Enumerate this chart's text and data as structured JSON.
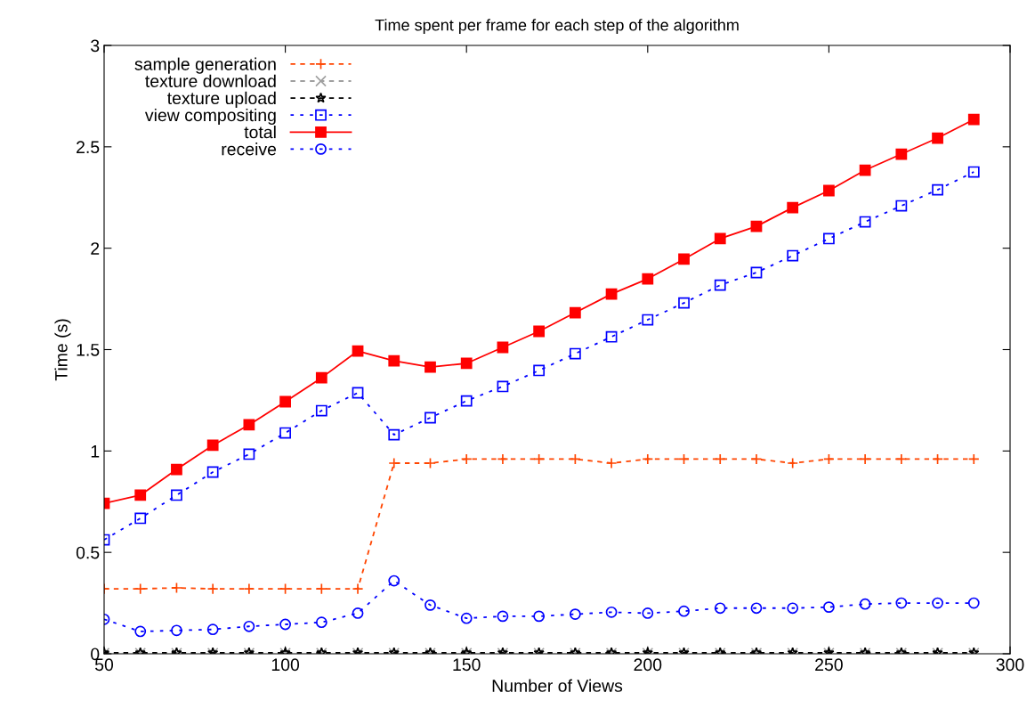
{
  "chart_data": {
    "type": "line",
    "title": "Time spent per frame for each step of the algorithm",
    "xlabel": "Number of Views",
    "ylabel": "Time (s)",
    "x": [
      50,
      60,
      70,
      80,
      90,
      100,
      110,
      120,
      130,
      140,
      150,
      160,
      170,
      180,
      190,
      200,
      210,
      220,
      230,
      240,
      250,
      260,
      270,
      280,
      290
    ],
    "xlim": [
      50,
      300
    ],
    "xticks": [
      50,
      100,
      150,
      200,
      250,
      300
    ],
    "ylim": [
      0,
      3
    ],
    "yticks": [
      0,
      0.5,
      1,
      1.5,
      2,
      2.5,
      3
    ],
    "grid": false,
    "legend": "top left",
    "series": [
      {
        "name": "sample generation",
        "color": "#ff4500",
        "marker": "cross",
        "line_style": "dashed",
        "values": [
          0.32,
          0.32,
          0.325,
          0.32,
          0.32,
          0.32,
          0.32,
          0.32,
          0.94,
          0.94,
          0.96,
          0.96,
          0.96,
          0.96,
          0.94,
          0.96,
          0.96,
          0.96,
          0.96,
          0.94,
          0.96,
          0.96,
          0.96,
          0.96,
          0.96
        ]
      },
      {
        "name": "texture download",
        "color": "#a0a0a0",
        "marker": "cross",
        "line_style": "dashed",
        "values": [
          0.003,
          0.003,
          0.003,
          0.003,
          0.003,
          0.003,
          0.003,
          0.003,
          0.003,
          0.003,
          0.003,
          0.003,
          0.003,
          0.003,
          0.003,
          0.003,
          0.003,
          0.003,
          0.003,
          0.003,
          0.003,
          0.003,
          0.003,
          0.003,
          0.003
        ]
      },
      {
        "name": "texture upload",
        "color": "#000000",
        "marker": "star",
        "line_style": "dashed",
        "values": [
          0.005,
          0.005,
          0.005,
          0.005,
          0.005,
          0.005,
          0.005,
          0.005,
          0.005,
          0.005,
          0.005,
          0.005,
          0.005,
          0.005,
          0.005,
          0.005,
          0.005,
          0.005,
          0.005,
          0.005,
          0.005,
          0.005,
          0.005,
          0.005,
          0.005
        ]
      },
      {
        "name": "view compositing",
        "color": "#0000ff",
        "marker": "square",
        "line_style": "dotted",
        "values": [
          0.562,
          0.668,
          0.782,
          0.896,
          0.984,
          1.089,
          1.199,
          1.287,
          1.08,
          1.164,
          1.247,
          1.318,
          1.397,
          1.48,
          1.563,
          1.647,
          1.73,
          1.818,
          1.88,
          1.963,
          2.047,
          2.13,
          2.209,
          2.288,
          2.376
        ]
      },
      {
        "name": "total",
        "color": "#ff0000",
        "marker": "square",
        "line_style": "solid",
        "values": [
          0.742,
          0.782,
          0.909,
          1.028,
          1.129,
          1.243,
          1.361,
          1.493,
          1.445,
          1.414,
          1.432,
          1.511,
          1.59,
          1.682,
          1.774,
          1.849,
          1.946,
          2.047,
          2.108,
          2.2,
          2.284,
          2.385,
          2.464,
          2.543,
          2.635
        ]
      },
      {
        "name": "receive",
        "color": "#0000ff",
        "marker": "circle",
        "line_style": "dotted",
        "values": [
          0.17,
          0.11,
          0.115,
          0.12,
          0.135,
          0.145,
          0.155,
          0.2,
          0.36,
          0.24,
          0.175,
          0.185,
          0.185,
          0.195,
          0.205,
          0.2,
          0.21,
          0.225,
          0.225,
          0.225,
          0.23,
          0.245,
          0.25,
          0.25,
          0.25
        ]
      }
    ]
  }
}
